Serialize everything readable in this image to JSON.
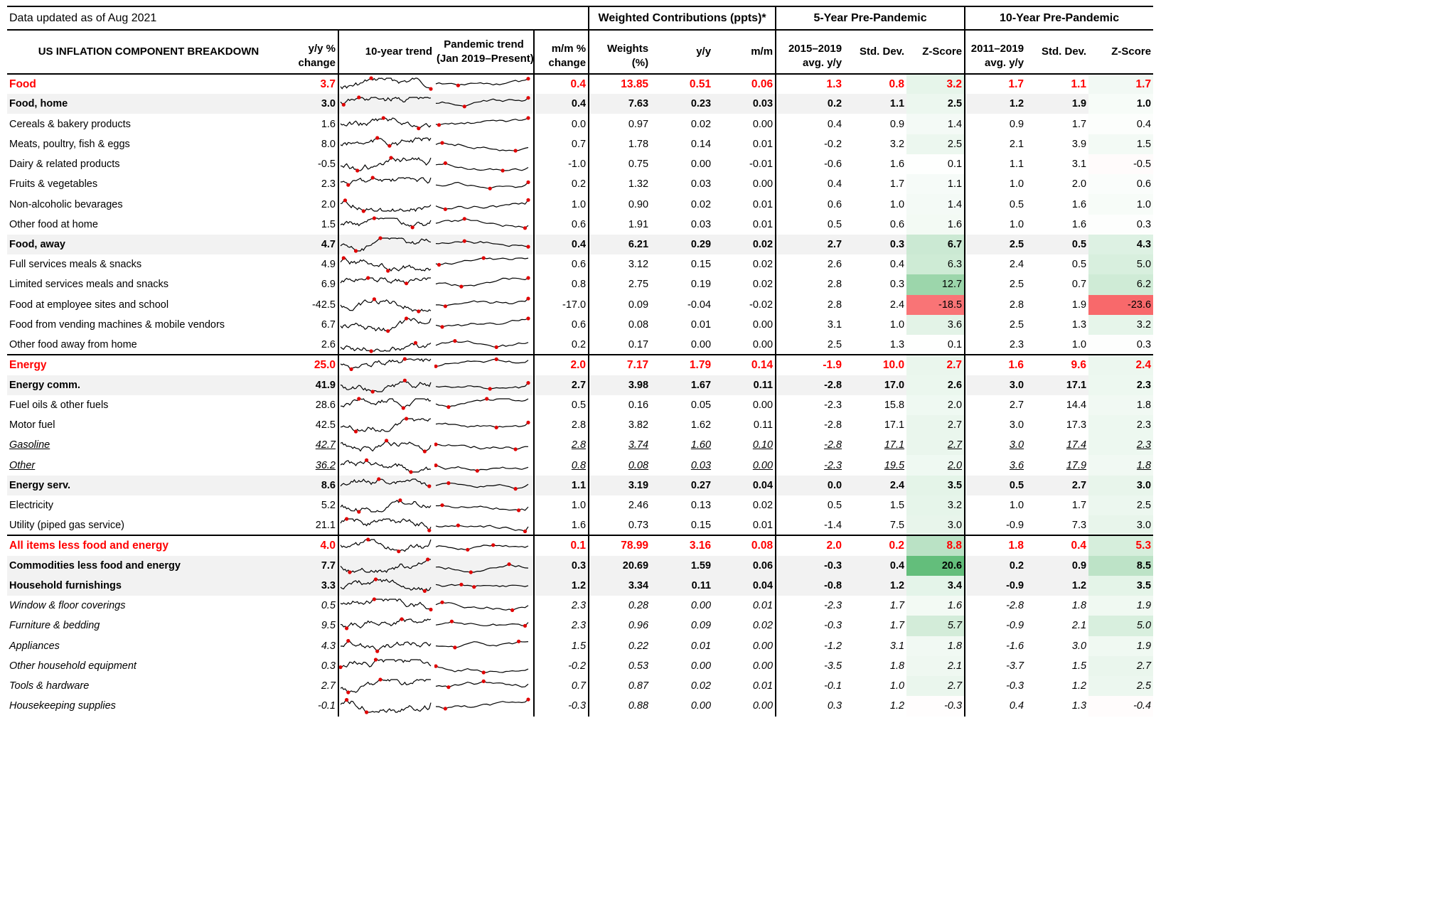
{
  "header": {
    "updated": "Data updated as of Aug 2021",
    "group_weighted": "Weighted Contributions (ppts)*",
    "group_5yr": "5-Year Pre-Pandemic",
    "group_10yr": "10-Year Pre-Pandemic",
    "col_label": "US INFLATION COMPONENT BREAKDOWN",
    "col_yy_1": "y/y %",
    "col_yy_2": "change",
    "col_trend10": "10-year trend",
    "col_pand_1": "Pandemic trend",
    "col_pand_2": "(Jan 2019–Present)",
    "col_mm_1": "m/m %",
    "col_mm_2": "change",
    "col_w_1": "Weights",
    "col_w_2": "(%)",
    "col_wc_yy": "y/y",
    "col_wc_mm": "m/m",
    "col_5_avg_1": "2015–2019",
    "col_5_avg_2": "avg. y/y",
    "col_std": "Std. Dev.",
    "col_z": "Z-Score",
    "col_10_avg_1": "2011–2019",
    "col_10_avg_2": "avg. y/y"
  },
  "rows": [
    {
      "name": "Food",
      "yy": "3.7",
      "mm": "0.4",
      "w": "13.85",
      "wy": "0.51",
      "wm": "0.06",
      "a5": "1.3",
      "s5": "0.8",
      "z5": "3.2",
      "a10": "1.7",
      "s10": "1.1",
      "z10": "1.7"
    },
    {
      "name": "Food, home",
      "yy": "3.0",
      "mm": "0.4",
      "w": "7.63",
      "wy": "0.23",
      "wm": "0.03",
      "a5": "0.2",
      "s5": "1.1",
      "z5": "2.5",
      "a10": "1.2",
      "s10": "1.9",
      "z10": "1.0"
    },
    {
      "name": "Cereals & bakery products",
      "yy": "1.6",
      "mm": "0.0",
      "w": "0.97",
      "wy": "0.02",
      "wm": "0.00",
      "a5": "0.4",
      "s5": "0.9",
      "z5": "1.4",
      "a10": "0.9",
      "s10": "1.7",
      "z10": "0.4"
    },
    {
      "name": "Meats, poultry, fish & eggs",
      "yy": "8.0",
      "mm": "0.7",
      "w": "1.78",
      "wy": "0.14",
      "wm": "0.01",
      "a5": "-0.2",
      "s5": "3.2",
      "z5": "2.5",
      "a10": "2.1",
      "s10": "3.9",
      "z10": "1.5"
    },
    {
      "name": "Dairy & related products",
      "yy": "-0.5",
      "mm": "-1.0",
      "w": "0.75",
      "wy": "0.00",
      "wm": "-0.01",
      "a5": "-0.6",
      "s5": "1.6",
      "z5": "0.1",
      "a10": "1.1",
      "s10": "3.1",
      "z10": "-0.5"
    },
    {
      "name": "Fruits & vegetables",
      "yy": "2.3",
      "mm": "0.2",
      "w": "1.32",
      "wy": "0.03",
      "wm": "0.00",
      "a5": "0.4",
      "s5": "1.7",
      "z5": "1.1",
      "a10": "1.0",
      "s10": "2.0",
      "z10": "0.6"
    },
    {
      "name": "Non-alcoholic bevarages",
      "yy": "2.0",
      "mm": "1.0",
      "w": "0.90",
      "wy": "0.02",
      "wm": "0.01",
      "a5": "0.6",
      "s5": "1.0",
      "z5": "1.4",
      "a10": "0.5",
      "s10": "1.6",
      "z10": "1.0"
    },
    {
      "name": "Other food at home",
      "yy": "1.5",
      "mm": "0.6",
      "w": "1.91",
      "wy": "0.03",
      "wm": "0.01",
      "a5": "0.5",
      "s5": "0.6",
      "z5": "1.6",
      "a10": "1.0",
      "s10": "1.6",
      "z10": "0.3"
    },
    {
      "name": "Food, away",
      "yy": "4.7",
      "mm": "0.4",
      "w": "6.21",
      "wy": "0.29",
      "wm": "0.02",
      "a5": "2.7",
      "s5": "0.3",
      "z5": "6.7",
      "a10": "2.5",
      "s10": "0.5",
      "z10": "4.3"
    },
    {
      "name": "Full services meals & snacks",
      "yy": "4.9",
      "mm": "0.6",
      "w": "3.12",
      "wy": "0.15",
      "wm": "0.02",
      "a5": "2.6",
      "s5": "0.4",
      "z5": "6.3",
      "a10": "2.4",
      "s10": "0.5",
      "z10": "5.0"
    },
    {
      "name": "Limited services meals and snacks",
      "yy": "6.9",
      "mm": "0.8",
      "w": "2.75",
      "wy": "0.19",
      "wm": "0.02",
      "a5": "2.8",
      "s5": "0.3",
      "z5": "12.7",
      "a10": "2.5",
      "s10": "0.7",
      "z10": "6.2"
    },
    {
      "name": "Food at employee sites and school",
      "yy": "-42.5",
      "mm": "-17.0",
      "w": "0.09",
      "wy": "-0.04",
      "wm": "-0.02",
      "a5": "2.8",
      "s5": "2.4",
      "z5": "-18.5",
      "a10": "2.8",
      "s10": "1.9",
      "z10": "-23.6"
    },
    {
      "name": "Food from vending machines & mobile vendors",
      "yy": "6.7",
      "mm": "0.6",
      "w": "0.08",
      "wy": "0.01",
      "wm": "0.00",
      "a5": "3.1",
      "s5": "1.0",
      "z5": "3.6",
      "a10": "2.5",
      "s10": "1.3",
      "z10": "3.2"
    },
    {
      "name": "Other food away from home",
      "yy": "2.6",
      "mm": "0.2",
      "w": "0.17",
      "wy": "0.00",
      "wm": "0.00",
      "a5": "2.5",
      "s5": "1.3",
      "z5": "0.1",
      "a10": "2.3",
      "s10": "1.0",
      "z10": "0.3"
    },
    {
      "name": "Energy",
      "yy": "25.0",
      "mm": "2.0",
      "w": "7.17",
      "wy": "1.79",
      "wm": "0.14",
      "a5": "-1.9",
      "s5": "10.0",
      "z5": "2.7",
      "a10": "1.6",
      "s10": "9.6",
      "z10": "2.4"
    },
    {
      "name": "Energy comm.",
      "yy": "41.9",
      "mm": "2.7",
      "w": "3.98",
      "wy": "1.67",
      "wm": "0.11",
      "a5": "-2.8",
      "s5": "17.0",
      "z5": "2.6",
      "a10": "3.0",
      "s10": "17.1",
      "z10": "2.3"
    },
    {
      "name": "Fuel oils & other fuels",
      "yy": "28.6",
      "mm": "0.5",
      "w": "0.16",
      "wy": "0.05",
      "wm": "0.00",
      "a5": "-2.3",
      "s5": "15.8",
      "z5": "2.0",
      "a10": "2.7",
      "s10": "14.4",
      "z10": "1.8"
    },
    {
      "name": "Motor fuel",
      "yy": "42.5",
      "mm": "2.8",
      "w": "3.82",
      "wy": "1.62",
      "wm": "0.11",
      "a5": "-2.8",
      "s5": "17.1",
      "z5": "2.7",
      "a10": "3.0",
      "s10": "17.3",
      "z10": "2.3"
    },
    {
      "name": "Gasoline",
      "yy": "42.7",
      "mm": "2.8",
      "w": "3.74",
      "wy": "1.60",
      "wm": "0.10",
      "a5": "-2.8",
      "s5": "17.1",
      "z5": "2.7",
      "a10": "3.0",
      "s10": "17.4",
      "z10": "2.3"
    },
    {
      "name": "Other",
      "yy": "36.2",
      "mm": "0.8",
      "w": "0.08",
      "wy": "0.03",
      "wm": "0.00",
      "a5": "-2.3",
      "s5": "19.5",
      "z5": "2.0",
      "a10": "3.6",
      "s10": "17.9",
      "z10": "1.8"
    },
    {
      "name": "Energy serv.",
      "yy": "8.6",
      "mm": "1.1",
      "w": "3.19",
      "wy": "0.27",
      "wm": "0.04",
      "a5": "0.0",
      "s5": "2.4",
      "z5": "3.5",
      "a10": "0.5",
      "s10": "2.7",
      "z10": "3.0"
    },
    {
      "name": "Electricity",
      "yy": "5.2",
      "mm": "1.0",
      "w": "2.46",
      "wy": "0.13",
      "wm": "0.02",
      "a5": "0.5",
      "s5": "1.5",
      "z5": "3.2",
      "a10": "1.0",
      "s10": "1.7",
      "z10": "2.5"
    },
    {
      "name": "Utility (piped gas service)",
      "yy": "21.1",
      "mm": "1.6",
      "w": "0.73",
      "wy": "0.15",
      "wm": "0.01",
      "a5": "-1.4",
      "s5": "7.5",
      "z5": "3.0",
      "a10": "-0.9",
      "s10": "7.3",
      "z10": "3.0"
    },
    {
      "name": "All items less food and energy",
      "yy": "4.0",
      "mm": "0.1",
      "w": "78.99",
      "wy": "3.16",
      "wm": "0.08",
      "a5": "2.0",
      "s5": "0.2",
      "z5": "8.8",
      "a10": "1.8",
      "s10": "0.4",
      "z10": "5.3"
    },
    {
      "name": "Commodities less food and energy",
      "yy": "7.7",
      "mm": "0.3",
      "w": "20.69",
      "wy": "1.59",
      "wm": "0.06",
      "a5": "-0.3",
      "s5": "0.4",
      "z5": "20.6",
      "a10": "0.2",
      "s10": "0.9",
      "z10": "8.5"
    },
    {
      "name": "Household furnishings",
      "yy": "3.3",
      "mm": "1.2",
      "w": "3.34",
      "wy": "0.11",
      "wm": "0.04",
      "a5": "-0.8",
      "s5": "1.2",
      "z5": "3.4",
      "a10": "-0.9",
      "s10": "1.2",
      "z10": "3.5"
    },
    {
      "name": "Window & floor coverings",
      "yy": "0.5",
      "mm": "2.3",
      "w": "0.28",
      "wy": "0.00",
      "wm": "0.01",
      "a5": "-2.3",
      "s5": "1.7",
      "z5": "1.6",
      "a10": "-2.8",
      "s10": "1.8",
      "z10": "1.9"
    },
    {
      "name": "Furniture & bedding",
      "yy": "9.5",
      "mm": "2.3",
      "w": "0.96",
      "wy": "0.09",
      "wm": "0.02",
      "a5": "-0.3",
      "s5": "1.7",
      "z5": "5.7",
      "a10": "-0.9",
      "s10": "2.1",
      "z10": "5.0"
    },
    {
      "name": "Appliances",
      "yy": "4.3",
      "mm": "1.5",
      "w": "0.22",
      "wy": "0.01",
      "wm": "0.00",
      "a5": "-1.2",
      "s5": "3.1",
      "z5": "1.8",
      "a10": "-1.6",
      "s10": "3.0",
      "z10": "1.9"
    },
    {
      "name": "Other household equipment",
      "yy": "0.3",
      "mm": "-0.2",
      "w": "0.53",
      "wy": "0.00",
      "wm": "0.00",
      "a5": "-3.5",
      "s5": "1.8",
      "z5": "2.1",
      "a10": "-3.7",
      "s10": "1.5",
      "z10": "2.7"
    },
    {
      "name": "Tools & hardware",
      "yy": "2.7",
      "mm": "0.7",
      "w": "0.87",
      "wy": "0.02",
      "wm": "0.01",
      "a5": "-0.1",
      "s5": "1.0",
      "z5": "2.7",
      "a10": "-0.3",
      "s10": "1.2",
      "z10": "2.5"
    },
    {
      "name": "Housekeeping supplies",
      "yy": "-0.1",
      "mm": "-0.3",
      "w": "0.88",
      "wy": "0.00",
      "wm": "0.00",
      "a5": "0.3",
      "s5": "1.2",
      "z5": "-0.3",
      "a10": "0.4",
      "s10": "1.3",
      "z10": "-0.4"
    }
  ]
}
